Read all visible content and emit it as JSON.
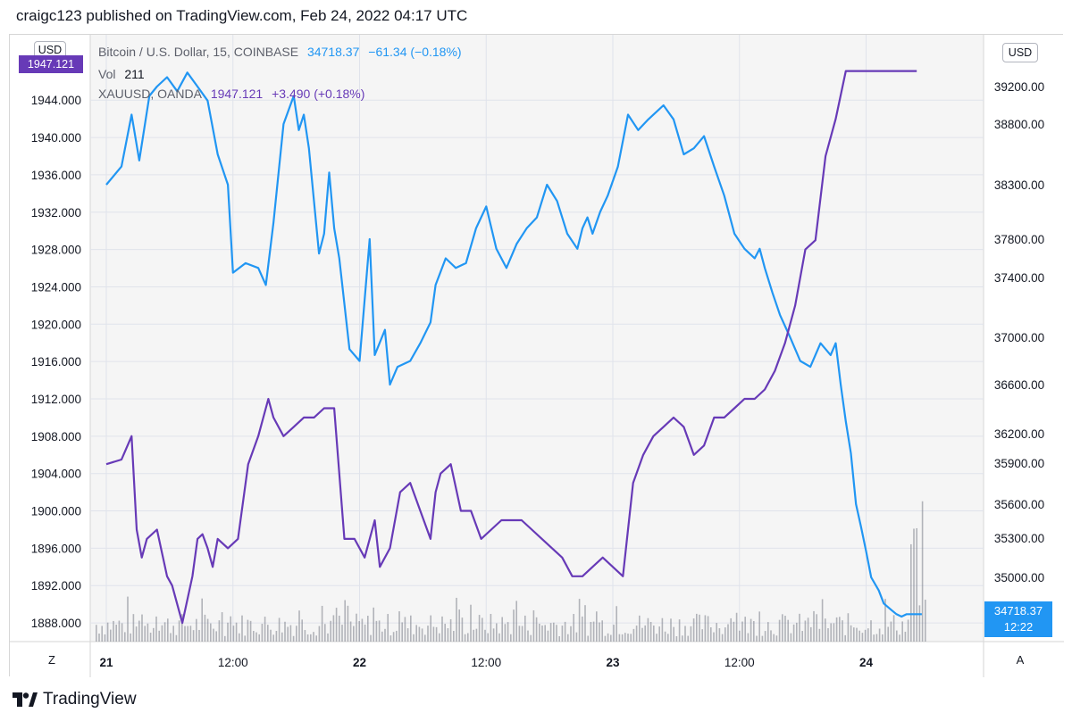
{
  "published": "craigc123 published on TradingView.com, Feb 24, 2022 04:17 UTC",
  "legend": {
    "main_symbol": "Bitcoin / U.S. Dollar, 15, COINBASE",
    "main_price": "34718.37",
    "main_change": "−61.34 (−0.18%)",
    "vol_label": "Vol",
    "vol_value": "211",
    "overlay_symbol": "XAUUSD, OANDA",
    "overlay_price": "1947.121",
    "overlay_change": "+3.490 (+0.18%)"
  },
  "badges": {
    "left_currency": "USD",
    "right_currency": "USD",
    "gold_last": "1947.121",
    "btc_last": "34718.37",
    "btc_countdown": "12:22"
  },
  "controls": {
    "left_button": "Z",
    "right_button": "A"
  },
  "footer": {
    "brand": "TradingView"
  },
  "colors": {
    "btc": "#2196f3",
    "gold": "#673ab7",
    "volume": "#787b86",
    "grid": "#e0e3eb",
    "background": "#f5f5f5"
  },
  "chart_data": {
    "type": "line",
    "x_ticks": [
      "21",
      "12:00",
      "22",
      "12:00",
      "23",
      "12:00",
      "24"
    ],
    "left_axis": {
      "ticks": [
        "1944.000",
        "1940.000",
        "1936.000",
        "1932.000",
        "1928.000",
        "1924.000",
        "1920.000",
        "1916.000",
        "1912.000",
        "1908.000",
        "1904.000",
        "1900.000",
        "1896.000",
        "1892.000",
        "1888.000"
      ],
      "range": [
        1886,
        1951
      ]
    },
    "right_axis": {
      "ticks": [
        "39200.00",
        "38800.00",
        "38300.00",
        "37800.00",
        "37400.00",
        "37000.00",
        "36600.00",
        "36200.00",
        "35900.00",
        "35600.00",
        "35300.00",
        "35000.00"
      ]
    },
    "series": [
      {
        "name": "Bitcoin / U.S. Dollar, 15, COINBASE",
        "axis": "right",
        "color": "#2196f3",
        "x": [
          0,
          0.06,
          0.1,
          0.13,
          0.17,
          0.2,
          0.24,
          0.28,
          0.32,
          0.36,
          0.4,
          0.44,
          0.48,
          0.5,
          0.55,
          0.6,
          0.63,
          0.66,
          0.7,
          0.74,
          0.76,
          0.78,
          0.8,
          0.84,
          0.86,
          0.88,
          0.9,
          0.92,
          0.96,
          1.0,
          1.04,
          1.06,
          1.1,
          1.12,
          1.15,
          1.2,
          1.24,
          1.28,
          1.3,
          1.34,
          1.38,
          1.42,
          1.46,
          1.5,
          1.54,
          1.58,
          1.62,
          1.66,
          1.7,
          1.74,
          1.78,
          1.82,
          1.86,
          1.88,
          1.9,
          1.92,
          1.95,
          1.98,
          2.02,
          2.06,
          2.1,
          2.14,
          2.18,
          2.2,
          2.24,
          2.28,
          2.32,
          2.36,
          2.4,
          2.44,
          2.48,
          2.52,
          2.56,
          2.58,
          2.6,
          2.63,
          2.66,
          2.7,
          2.74,
          2.78,
          2.82,
          2.86,
          2.88,
          2.9,
          2.92,
          2.94,
          2.96,
          2.98,
          3.0,
          3.02,
          3.05,
          3.07,
          3.1,
          3.12,
          3.14,
          3.16,
          3.18,
          3.2,
          3.22
        ],
        "y": [
          38300,
          38450,
          38900,
          38500,
          39100,
          39200,
          39300,
          39150,
          39350,
          39200,
          39050,
          38550,
          38300,
          37450,
          37550,
          37500,
          37350,
          37950,
          38800,
          39100,
          38750,
          38900,
          38600,
          37650,
          37850,
          38400,
          37900,
          37600,
          36900,
          36800,
          37800,
          36850,
          37050,
          36600,
          36750,
          36800,
          36950,
          37100,
          37350,
          37600,
          37500,
          37550,
          37900,
          38100,
          37700,
          37500,
          37750,
          37900,
          38000,
          38300,
          38150,
          37850,
          37700,
          37900,
          38000,
          37850,
          38050,
          38200,
          38450,
          38900,
          38750,
          38850,
          38950,
          39000,
          38850,
          38550,
          38600,
          38700,
          38450,
          38200,
          37850,
          37700,
          37600,
          37700,
          37500,
          37300,
          37150,
          37000,
          36800,
          36750,
          36950,
          36850,
          36950,
          36600,
          36300,
          36000,
          35600,
          35400,
          35200,
          35000,
          34900,
          34800,
          34750,
          34718.37,
          34700,
          34718.37,
          34718.37,
          34718.37,
          34718.37
        ]
      },
      {
        "name": "XAUUSD, OANDA",
        "axis": "left",
        "color": "#673ab7",
        "x": [
          0,
          0.06,
          0.1,
          0.12,
          0.14,
          0.16,
          0.2,
          0.24,
          0.26,
          0.3,
          0.34,
          0.36,
          0.38,
          0.4,
          0.42,
          0.44,
          0.48,
          0.52,
          0.56,
          0.6,
          0.64,
          0.66,
          0.7,
          0.74,
          0.78,
          0.82,
          0.86,
          0.9,
          0.94,
          0.98,
          1.02,
          1.06,
          1.08,
          1.12,
          1.16,
          1.2,
          1.24,
          1.28,
          1.3,
          1.32,
          1.36,
          1.4,
          1.44,
          1.48,
          1.52,
          1.56,
          1.6,
          1.64,
          1.68,
          1.72,
          1.76,
          1.8,
          1.84,
          1.88,
          1.92,
          1.96,
          2.0,
          2.04,
          2.08,
          2.12,
          2.16,
          2.2,
          2.24,
          2.28,
          2.32,
          2.36,
          2.4,
          2.44,
          2.48,
          2.52,
          2.56,
          2.6,
          2.64,
          2.68,
          2.72,
          2.76,
          2.8,
          2.84,
          2.88,
          2.92,
          2.96,
          3.0,
          3.04,
          3.06,
          3.08,
          3.1,
          3.12,
          3.14,
          3.16,
          3.18,
          3.2
        ],
        "y": [
          1905,
          1905.5,
          1908,
          1898,
          1895,
          1897,
          1898,
          1893,
          1892,
          1888,
          1893,
          1897,
          1897.5,
          1896,
          1894,
          1897,
          1896,
          1897,
          1905,
          1908,
          1912,
          1910,
          1908,
          1909,
          1910,
          1910,
          1911,
          1911,
          1897,
          1897,
          1895,
          1899,
          1894,
          1896,
          1902,
          1903,
          1900,
          1897,
          1902,
          1904,
          1905,
          1900,
          1900,
          1897,
          1898,
          1899,
          1899,
          1899,
          1898,
          1897,
          1896,
          1895,
          1893,
          1893,
          1894,
          1895,
          1894,
          1893,
          1903,
          1906,
          1908,
          1909,
          1910,
          1909,
          1906,
          1907,
          1910,
          1910,
          1911,
          1912,
          1912,
          1913,
          1915,
          1918,
          1922,
          1928,
          1929,
          1938,
          1942,
          1947.121,
          1947.121,
          1947.121,
          1947.121,
          1947.121,
          1947.121,
          1947.121,
          1947.121,
          1947.121,
          1947.121,
          1947.121,
          1947.121
        ]
      }
    ],
    "volume": {
      "name": "Vol",
      "last": 211
    },
    "grid": true,
    "legend": "top-left"
  }
}
